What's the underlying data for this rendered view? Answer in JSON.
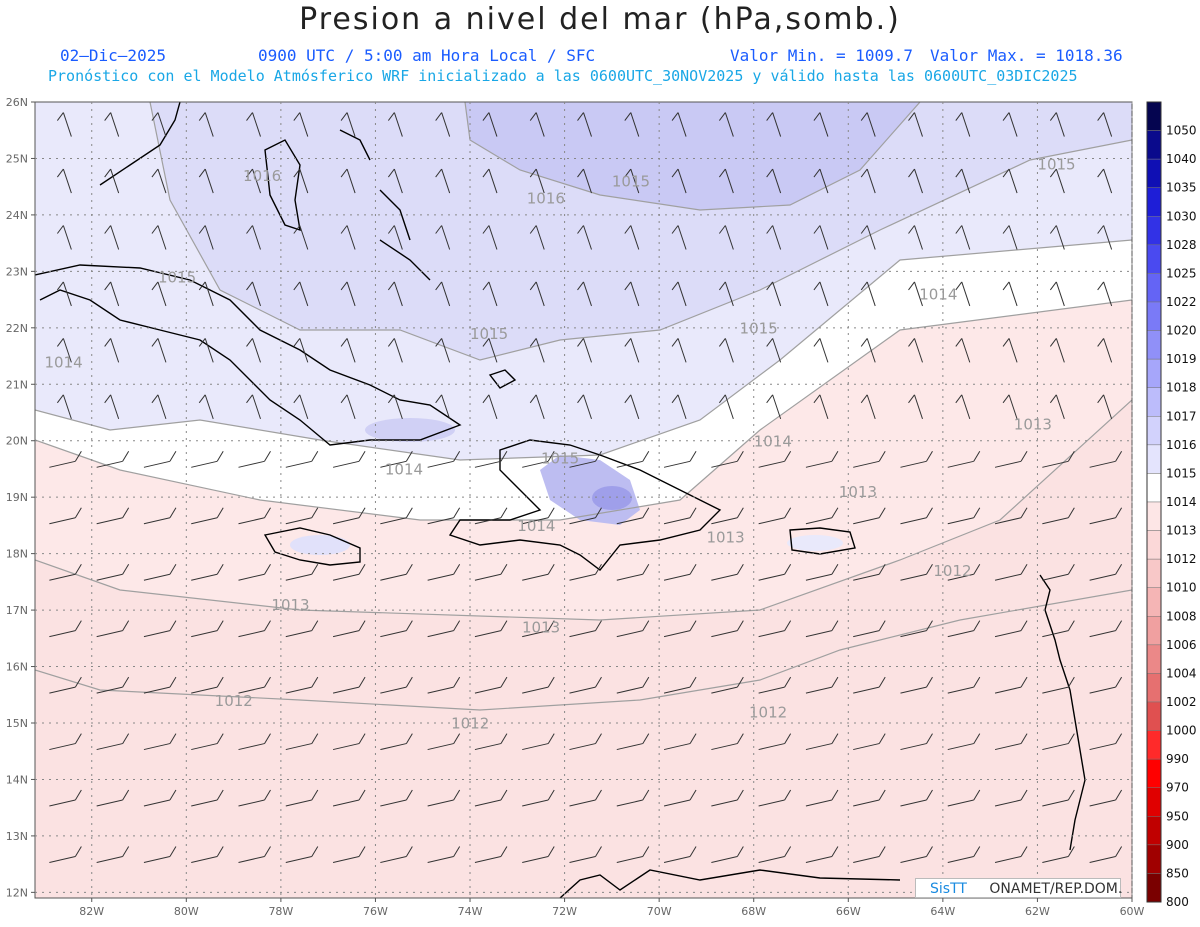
{
  "header": {
    "title": "Presion a nivel del mar (hPa,somb.)",
    "date": "02–Dic–2025",
    "time": "0900 UTC / 5:00 am Hora Local / SFC",
    "vmin": "Valor Min. = 1009.7",
    "vmax": "Valor Max. = 1018.36",
    "model": "Pronóstico con el Modelo Atmósferico WRF inicializado a las 0600UTC_30NOV2025 y válido hasta las  0600UTC_03DIC2025"
  },
  "credit": {
    "left": "SisTT",
    "right": "ONAMET/REP.DOM."
  },
  "axes": {
    "lon": [
      "82W",
      "80W",
      "78W",
      "76W",
      "74W",
      "72W",
      "70W",
      "68W",
      "66W",
      "64W",
      "62W",
      "60W"
    ],
    "lat": [
      "26N",
      "25N",
      "24N",
      "23N",
      "22N",
      "21N",
      "20N",
      "19N",
      "18N",
      "17N",
      "16N",
      "15N",
      "14N",
      "13N",
      "12N"
    ]
  },
  "legend": [
    "1050",
    "1040",
    "1035",
    "1030",
    "1028",
    "1025",
    "1022",
    "1020",
    "1019",
    "1018",
    "1017",
    "1016",
    "1015",
    "1014",
    "1013",
    "1012",
    "1010",
    "1008",
    "1006",
    "1004",
    "1002",
    "1000",
    "990",
    "970",
    "950",
    "900",
    "850",
    "800"
  ],
  "legend_colors": [
    "#050550",
    "#0a0a8c",
    "#0f0fb4",
    "#1e1ed7",
    "#3232e6",
    "#4a4af0",
    "#6464f5",
    "#7a7af7",
    "#9090f8",
    "#a6a6fa",
    "#bcbcfb",
    "#d2d2fc",
    "#e4e4fd",
    "#ffffff",
    "#fde6e6",
    "#fbd8d8",
    "#f8c8c8",
    "#f5b5b5",
    "#f0a0a0",
    "#eb8888",
    "#e67070",
    "#e05050",
    "#ff2a2a",
    "#ff0000",
    "#e00000",
    "#c00000",
    "#a00000",
    "#7a0000"
  ],
  "contours": [
    {
      "text": "1016",
      "lon": -78.8,
      "lat": 24.6
    },
    {
      "text": "1016",
      "lon": -72.8,
      "lat": 24.2
    },
    {
      "text": "1015",
      "lon": -80.6,
      "lat": 22.8
    },
    {
      "text": "1015",
      "lon": -71.0,
      "lat": 24.5
    },
    {
      "text": "1015",
      "lon": -62.0,
      "lat": 24.8
    },
    {
      "text": "1015",
      "lon": -74.0,
      "lat": 21.8
    },
    {
      "text": "1015",
      "lon": -68.3,
      "lat": 21.9
    },
    {
      "text": "1014",
      "lon": -83.0,
      "lat": 21.3
    },
    {
      "text": "1014",
      "lon": -64.5,
      "lat": 22.5
    },
    {
      "text": "1014",
      "lon": -75.8,
      "lat": 19.4
    },
    {
      "text": "1014",
      "lon": -68.0,
      "lat": 19.9
    },
    {
      "text": "1015",
      "lon": -72.5,
      "lat": 19.6
    },
    {
      "text": "1014",
      "lon": -73.0,
      "lat": 18.4
    },
    {
      "text": "1013",
      "lon": -62.5,
      "lat": 20.2
    },
    {
      "text": "1013",
      "lon": -66.2,
      "lat": 19.0
    },
    {
      "text": "1013",
      "lon": -69.0,
      "lat": 18.2
    },
    {
      "text": "1013",
      "lon": -78.2,
      "lat": 17.0
    },
    {
      "text": "1013",
      "lon": -72.9,
      "lat": 16.6
    },
    {
      "text": "1012",
      "lon": -64.2,
      "lat": 17.6
    },
    {
      "text": "1012",
      "lon": -79.4,
      "lat": 15.3
    },
    {
      "text": "1012",
      "lon": -74.4,
      "lat": 14.9
    },
    {
      "text": "1012",
      "lon": -68.1,
      "lat": 15.1
    }
  ]
}
